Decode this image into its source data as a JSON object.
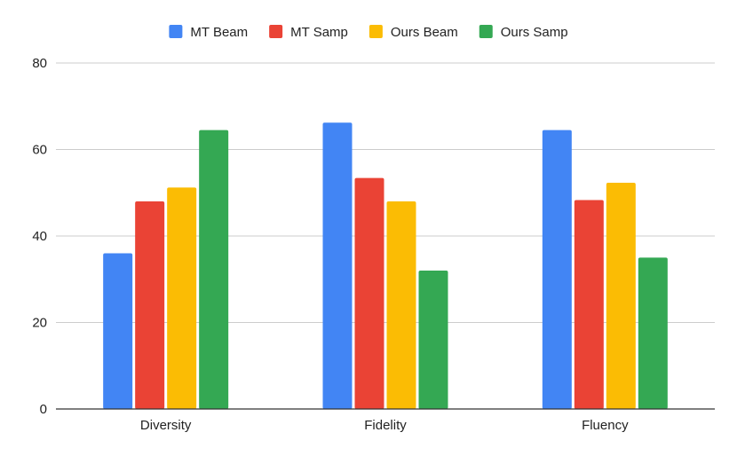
{
  "chart_data": {
    "type": "bar",
    "categories": [
      "Diversity",
      "Fidelity",
      "Fluency"
    ],
    "series": [
      {
        "name": "MT Beam",
        "color": "#4285F4",
        "values": [
          36,
          66.2,
          64.5
        ]
      },
      {
        "name": "MT Samp",
        "color": "#EA4335",
        "values": [
          48,
          53.4,
          48.3
        ]
      },
      {
        "name": "Ours Beam",
        "color": "#FBBC04",
        "values": [
          51.2,
          48,
          52.3
        ]
      },
      {
        "name": "Ours Samp",
        "color": "#34A853",
        "values": [
          64.5,
          32,
          35
        ]
      }
    ],
    "ylim": [
      0,
      80
    ],
    "yticks": [
      "0",
      "20",
      "40",
      "60",
      "80"
    ],
    "grid": true,
    "legend": "top-center"
  }
}
